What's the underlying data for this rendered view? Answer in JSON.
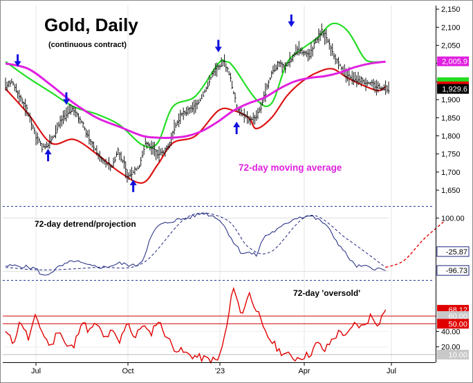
{
  "title": "Gold, Daily",
  "subtitle": "(continuous contract)",
  "colors": {
    "price_bars": "#111111",
    "upper_band": "#22dd22",
    "lower_band": "#dd1111",
    "moving_average": "#e020e0",
    "detrend": "#1a237e",
    "oversold": "#e00000",
    "arrow": "#1010e0",
    "divider": "#1a3aa0"
  },
  "x_axis": {
    "labels": [
      "Jul",
      "Oct",
      "'23",
      "Apr",
      "Jul"
    ]
  },
  "chart_data": [
    {
      "type": "ohlc",
      "name": "price_panel",
      "title": "Gold, Daily",
      "subtitle": "(continuous contract)",
      "ylim": [
        1610,
        2160
      ],
      "y_ticks": [
        1650,
        1700,
        1750,
        1800,
        1850,
        1900,
        1950,
        2000,
        2050,
        2100,
        2150
      ],
      "y_tick_labels": [
        "1,650",
        "1,700",
        "1,750",
        "1,800",
        "1,850",
        "1,900",
        "1,950",
        "2,000",
        "2,050",
        "2,100",
        "2,150"
      ],
      "x_range": [
        "Jun 2022",
        "Jun 2023"
      ],
      "price_path": {
        "days": [
          0,
          4,
          8,
          14,
          20,
          24,
          28,
          32,
          35,
          40,
          44,
          50,
          54,
          58,
          62,
          66,
          70,
          74,
          78,
          80,
          84,
          88,
          92,
          96,
          100,
          104,
          108,
          112,
          116,
          120,
          124,
          128,
          132,
          136,
          140,
          144,
          148,
          152,
          156,
          160,
          164,
          168,
          172,
          176,
          180,
          184,
          188,
          192,
          196,
          200,
          204,
          208,
          212,
          216,
          220,
          224,
          228,
          232,
          236,
          240,
          244,
          248,
          252
        ],
        "close": [
          1935,
          1950,
          1920,
          1870,
          1800,
          1770,
          1775,
          1800,
          1830,
          1860,
          1875,
          1840,
          1800,
          1770,
          1740,
          1725,
          1715,
          1760,
          1720,
          1690,
          1700,
          1715,
          1780,
          1770,
          1750,
          1755,
          1775,
          1830,
          1860,
          1870,
          1880,
          1900,
          1930,
          1970,
          1990,
          2005,
          1960,
          1880,
          1860,
          1845,
          1850,
          1880,
          1935,
          1980,
          2000,
          1990,
          2010,
          2040,
          2030,
          2020,
          2060,
          2090,
          2060,
          2020,
          1995,
          1970,
          1960,
          1955,
          1950,
          1945,
          1938,
          1932,
          1929.6
        ]
      },
      "series": [
        {
          "name": "Upper band",
          "color": "#22dd22",
          "days": [
            0,
            15,
            30,
            45,
            60,
            75,
            90,
            100,
            110,
            125,
            140,
            145,
            150,
            165,
            175,
            185,
            195,
            205,
            215,
            225,
            235,
            240,
            250
          ],
          "values": [
            2005,
            1960,
            1920,
            1880,
            1860,
            1830,
            1775,
            1780,
            1880,
            1910,
            2000,
            2005,
            1990,
            1900,
            1890,
            2000,
            2040,
            2070,
            2110,
            2090,
            2020,
            2005,
            2005
          ]
        },
        {
          "name": "Lower band",
          "color": "#dd1111",
          "days": [
            0,
            15,
            30,
            45,
            60,
            75,
            90,
            100,
            110,
            125,
            140,
            150,
            160,
            165,
            175,
            185,
            195,
            205,
            215,
            225,
            235,
            245,
            250
          ],
          "values": [
            1930,
            1860,
            1780,
            1790,
            1750,
            1700,
            1670,
            1720,
            1780,
            1800,
            1870,
            1870,
            1850,
            1820,
            1850,
            1910,
            1950,
            1975,
            1985,
            1960,
            1940,
            1925,
            1935
          ]
        },
        {
          "name": "72-day moving average",
          "color": "#e020e0",
          "days": [
            0,
            15,
            30,
            45,
            60,
            75,
            90,
            100,
            110,
            120,
            130,
            140,
            150,
            160,
            170,
            180,
            190,
            200,
            210,
            220,
            230,
            240,
            250
          ],
          "values": [
            2000,
            1985,
            1940,
            1890,
            1850,
            1825,
            1800,
            1795,
            1795,
            1800,
            1815,
            1840,
            1870,
            1890,
            1905,
            1930,
            1950,
            1960,
            1965,
            1975,
            1990,
            2000,
            2005
          ]
        }
      ],
      "arrows": [
        {
          "direction": "down",
          "day": 8,
          "price": 2010
        },
        {
          "direction": "up",
          "day": 28,
          "price": 1745
        },
        {
          "direction": "down",
          "day": 40,
          "price": 1905
        },
        {
          "direction": "up",
          "day": 84,
          "price": 1660
        },
        {
          "direction": "down",
          "day": 140,
          "price": 2050
        },
        {
          "direction": "up",
          "day": 152,
          "price": 1820
        },
        {
          "direction": "down",
          "day": 188,
          "price": 2120
        }
      ],
      "annotations": [
        "72-day moving average"
      ],
      "value_labels": [
        {
          "text": "2,005.9",
          "color": "#e020e0"
        },
        {
          "text": "1,929.6",
          "color": "#000000"
        }
      ]
    },
    {
      "type": "line",
      "name": "detrend_panel",
      "title": "72-day detrend/projection",
      "ylim": [
        -130,
        140
      ],
      "y_ticks": [
        100
      ],
      "y_tick_labels": [
        "100.00"
      ],
      "series": [
        {
          "name": "72-day detrend",
          "style": "solid",
          "days": [
            0,
            10,
            20,
            25,
            35,
            45,
            55,
            65,
            75,
            85,
            90,
            95,
            100,
            110,
            120,
            130,
            140,
            145,
            150,
            155,
            160,
            165,
            170,
            180,
            190,
            200,
            210,
            220,
            230,
            240,
            250
          ],
          "values": [
            -80,
            -80,
            -90,
            -120,
            -85,
            -60,
            -80,
            -85,
            -70,
            -80,
            -60,
            20,
            70,
            90,
            100,
            120,
            100,
            60,
            10,
            -30,
            -30,
            -40,
            30,
            60,
            100,
            110,
            80,
            -5,
            -80,
            -85,
            -96.73
          ]
        },
        {
          "name": "72-day projection",
          "style": "dashed",
          "days": [
            0,
            25,
            60,
            90,
            120,
            145,
            160,
            175,
            200,
            225,
            250,
            262,
            275,
            288
          ],
          "values": [
            -85,
            -95,
            -85,
            -70,
            105,
            95,
            -10,
            -25,
            110,
            20,
            -85,
            -60,
            20,
            85
          ]
        }
      ],
      "value_labels": [
        {
          "text": "-25.87",
          "color": "#000000"
        },
        {
          "text": "-96.73",
          "color": "#000000"
        }
      ]
    },
    {
      "type": "line",
      "name": "oversold_panel",
      "title": "72-day 'oversold'",
      "ylim": [
        0,
        105
      ],
      "y_ticks": [
        20,
        40
      ],
      "y_tick_labels": [
        "20.00",
        "40.00"
      ],
      "reference_lines": [
        {
          "value": 60,
          "label": "60.00",
          "color": "#cc0000"
        },
        {
          "value": 50,
          "label": "50.00",
          "color": "#cc0000"
        },
        {
          "value": 10,
          "label": "10.00",
          "color": "#bbbbbb"
        }
      ],
      "series": [
        {
          "name": "72-day oversold",
          "color": "#e00000",
          "days": [
            0,
            5,
            10,
            15,
            20,
            25,
            30,
            35,
            40,
            45,
            50,
            55,
            60,
            65,
            70,
            75,
            80,
            85,
            90,
            95,
            100,
            110,
            120,
            130,
            140,
            145,
            150,
            155,
            160,
            165,
            170,
            180,
            190,
            200,
            205,
            210,
            215,
            220,
            225,
            230,
            235,
            240,
            245,
            250
          ],
          "values": [
            40,
            25,
            55,
            30,
            60,
            35,
            20,
            45,
            20,
            20,
            55,
            40,
            50,
            30,
            40,
            25,
            55,
            30,
            50,
            35,
            55,
            20,
            10,
            5,
            2,
            40,
            100,
            60,
            90,
            70,
            40,
            15,
            5,
            10,
            25,
            15,
            30,
            40,
            35,
            50,
            45,
            60,
            50,
            68.12
          ]
        }
      ],
      "value_labels": [
        {
          "text": "68.12",
          "color": "#e00000"
        }
      ]
    }
  ]
}
